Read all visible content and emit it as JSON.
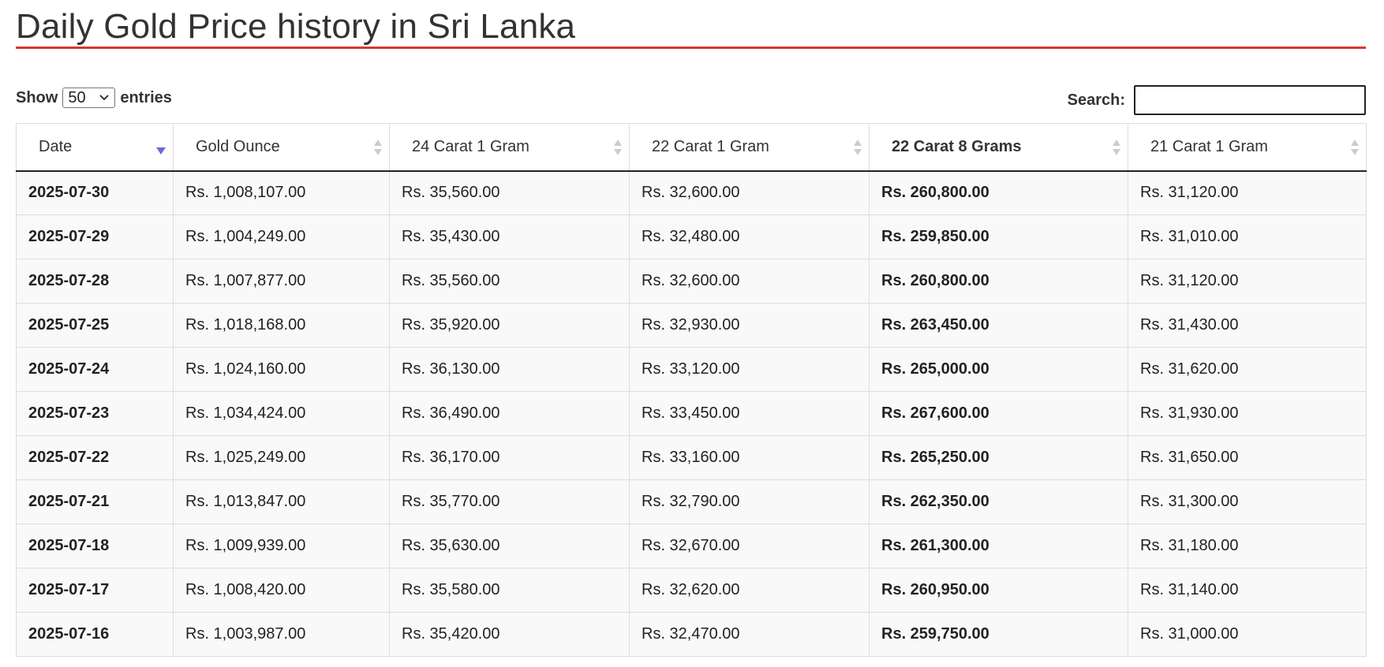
{
  "page": {
    "title": "Daily Gold Price history in Sri Lanka"
  },
  "controls": {
    "show_label": "Show",
    "entries_value": "50",
    "entries_label": "entries",
    "search_label": "Search:",
    "search_value": ""
  },
  "colors": {
    "title_rule": "#dd3333",
    "sort_active": "#6b6bd6",
    "sort_inactive": "#cccccc",
    "row_background": "#f9f9f9"
  },
  "table": {
    "columns": [
      {
        "label": "Date",
        "sort": "desc",
        "bold": false
      },
      {
        "label": "Gold Ounce",
        "sort": "none",
        "bold": false
      },
      {
        "label": "24 Carat 1 Gram",
        "sort": "none",
        "bold": false
      },
      {
        "label": "22 Carat 1 Gram",
        "sort": "none",
        "bold": false
      },
      {
        "label": "22 Carat 8 Grams",
        "sort": "none",
        "bold": true
      },
      {
        "label": "21 Carat 1 Gram",
        "sort": "none",
        "bold": false
      }
    ],
    "rows": [
      [
        "2025-07-30",
        "Rs. 1,008,107.00",
        "Rs. 35,560.00",
        "Rs. 32,600.00",
        "Rs. 260,800.00",
        "Rs. 31,120.00"
      ],
      [
        "2025-07-29",
        "Rs. 1,004,249.00",
        "Rs. 35,430.00",
        "Rs. 32,480.00",
        "Rs. 259,850.00",
        "Rs. 31,010.00"
      ],
      [
        "2025-07-28",
        "Rs. 1,007,877.00",
        "Rs. 35,560.00",
        "Rs. 32,600.00",
        "Rs. 260,800.00",
        "Rs. 31,120.00"
      ],
      [
        "2025-07-25",
        "Rs. 1,018,168.00",
        "Rs. 35,920.00",
        "Rs. 32,930.00",
        "Rs. 263,450.00",
        "Rs. 31,430.00"
      ],
      [
        "2025-07-24",
        "Rs. 1,024,160.00",
        "Rs. 36,130.00",
        "Rs. 33,120.00",
        "Rs. 265,000.00",
        "Rs. 31,620.00"
      ],
      [
        "2025-07-23",
        "Rs. 1,034,424.00",
        "Rs. 36,490.00",
        "Rs. 33,450.00",
        "Rs. 267,600.00",
        "Rs. 31,930.00"
      ],
      [
        "2025-07-22",
        "Rs. 1,025,249.00",
        "Rs. 36,170.00",
        "Rs. 33,160.00",
        "Rs. 265,250.00",
        "Rs. 31,650.00"
      ],
      [
        "2025-07-21",
        "Rs. 1,013,847.00",
        "Rs. 35,770.00",
        "Rs. 32,790.00",
        "Rs. 262,350.00",
        "Rs. 31,300.00"
      ],
      [
        "2025-07-18",
        "Rs. 1,009,939.00",
        "Rs. 35,630.00",
        "Rs. 32,670.00",
        "Rs. 261,300.00",
        "Rs. 31,180.00"
      ],
      [
        "2025-07-17",
        "Rs. 1,008,420.00",
        "Rs. 35,580.00",
        "Rs. 32,620.00",
        "Rs. 260,950.00",
        "Rs. 31,140.00"
      ],
      [
        "2025-07-16",
        "Rs. 1,003,987.00",
        "Rs. 35,420.00",
        "Rs. 32,470.00",
        "Rs. 259,750.00",
        "Rs. 31,000.00"
      ]
    ]
  }
}
